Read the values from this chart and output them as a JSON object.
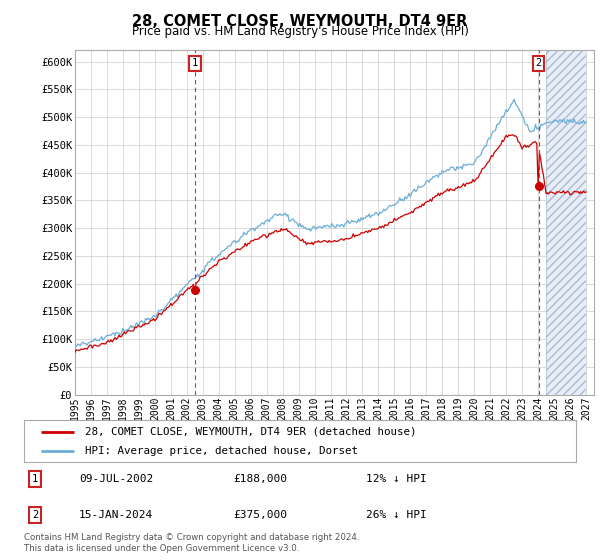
{
  "title": "28, COMET CLOSE, WEYMOUTH, DT4 9ER",
  "subtitle": "Price paid vs. HM Land Registry's House Price Index (HPI)",
  "legend_line1": "28, COMET CLOSE, WEYMOUTH, DT4 9ER (detached house)",
  "legend_line2": "HPI: Average price, detached house, Dorset",
  "annotation1_date": "09-JUL-2002",
  "annotation1_price": "£188,000",
  "annotation1_hpi": "12% ↓ HPI",
  "annotation2_date": "15-JAN-2024",
  "annotation2_price": "£375,000",
  "annotation2_hpi": "26% ↓ HPI",
  "footer": "Contains HM Land Registry data © Crown copyright and database right 2024.\nThis data is licensed under the Open Government Licence v3.0.",
  "hpi_color": "#6baed6",
  "price_color": "#cc0000",
  "box_color": "#cc2222",
  "plot_bg_color": "#ffffff",
  "fig_bg_color": "#ffffff",
  "grid_color": "#cccccc",
  "ylim_min": 0,
  "ylim_max": 620000,
  "yticks": [
    0,
    50000,
    100000,
    150000,
    200000,
    250000,
    300000,
    350000,
    400000,
    450000,
    500000,
    550000,
    600000
  ],
  "ytick_labels": [
    "£0",
    "£50K",
    "£100K",
    "£150K",
    "£200K",
    "£250K",
    "£300K",
    "£350K",
    "£400K",
    "£450K",
    "£500K",
    "£550K",
    "£600K"
  ],
  "sale1_x": 2002.52,
  "sale1_y": 188000,
  "sale2_x": 2024.04,
  "sale2_y": 375000,
  "xmin": 1995.0,
  "xmax": 2027.5,
  "hatch_start": 2024.5
}
